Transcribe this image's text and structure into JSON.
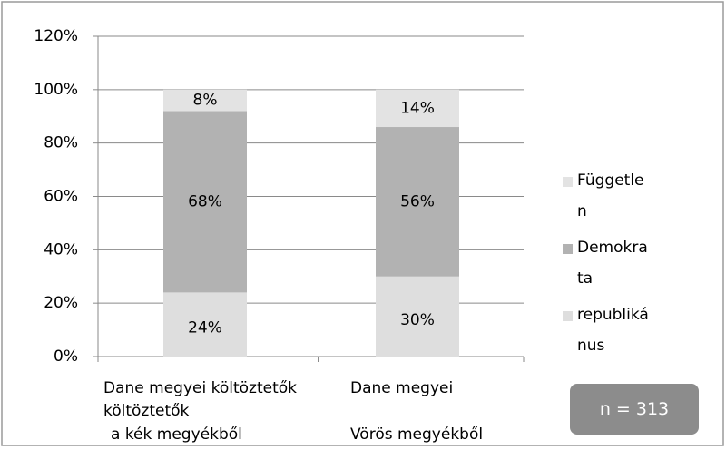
{
  "chart_data": {
    "type": "stacked_bar",
    "categories": [
      [
        "Dane megyei költöztetők",
        "a kék megyékből"
      ],
      [
        "Dane megyei",
        "költöztetők",
        "Vörös megyékből"
      ]
    ],
    "series": [
      {
        "name": "republikánus",
        "color": "#dedede",
        "values": [
          24,
          30
        ],
        "value_labels": [
          "24%",
          "30%"
        ]
      },
      {
        "name": "Demokrata",
        "color": "#b2b2b2",
        "values": [
          68,
          56
        ],
        "value_labels": [
          "68%",
          "56%"
        ]
      },
      {
        "name": "Független",
        "color": "#e3e3e3",
        "values": [
          8,
          14
        ],
        "value_labels": [
          "8%",
          "14%"
        ]
      }
    ],
    "ylim": [
      0,
      120
    ],
    "yticks": [
      {
        "value": 0,
        "label": "0%"
      },
      {
        "value": 20,
        "label": "20%"
      },
      {
        "value": 40,
        "label": "40%"
      },
      {
        "value": 60,
        "label": "60%"
      },
      {
        "value": 80,
        "label": "80%"
      },
      {
        "value": 100,
        "label": "100%"
      },
      {
        "value": 120,
        "label": "120%"
      }
    ],
    "grid": true,
    "legend": "right",
    "annotation": "n = 313"
  }
}
